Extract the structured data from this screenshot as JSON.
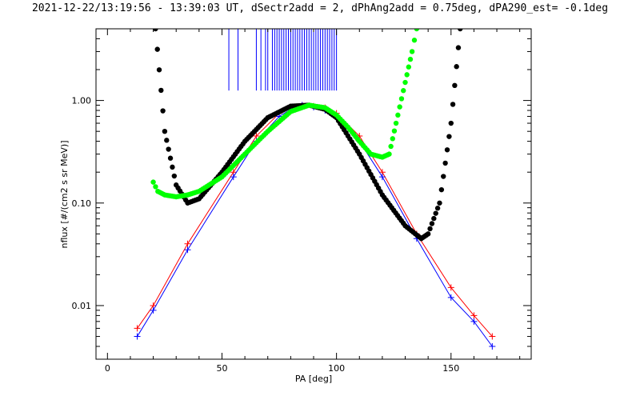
{
  "chart_data": {
    "type": "scatter",
    "title": "2021-12-22/13:19:56 - 13:39:03 UT, dSectr2add = 2, dPhAng2add = 0.75deg, dPA290_est=  -0.1deg",
    "xlabel": "PA [deg]",
    "ylabel": "nflux [#/(cm2 s sr MeV)]",
    "xlim": [
      -5,
      185
    ],
    "ylim": [
      0.003,
      5.0
    ],
    "yscale": "log",
    "x_ticks": [
      0,
      50,
      100,
      150
    ],
    "x_tick_labels": [
      "0",
      "50",
      "100",
      "150"
    ],
    "y_ticks": [
      0.01,
      0.1,
      1.0
    ],
    "y_tick_labels": [
      "0.01",
      "0.10",
      "1.00"
    ],
    "grid": false,
    "colors": {
      "red": "#ff0000",
      "blue": "#0000ff",
      "black": "#000000",
      "green": "#00ff00"
    },
    "series": [
      {
        "color": "red",
        "style": "line+plus",
        "x": [
          13,
          20,
          35,
          55,
          65,
          75,
          80,
          85,
          90,
          95,
          100,
          110,
          120,
          135,
          150,
          160,
          168
        ],
        "y": [
          0.006,
          0.01,
          0.04,
          0.2,
          0.45,
          0.75,
          0.85,
          0.9,
          0.88,
          0.85,
          0.75,
          0.45,
          0.2,
          0.05,
          0.015,
          0.008,
          0.005
        ]
      },
      {
        "color": "blue",
        "style": "line+plus",
        "x": [
          13,
          20,
          35,
          55,
          65,
          75,
          80,
          85,
          90,
          95,
          100,
          110,
          120,
          135,
          150,
          160,
          168
        ],
        "y": [
          0.005,
          0.009,
          0.035,
          0.18,
          0.4,
          0.7,
          0.82,
          0.9,
          0.86,
          0.8,
          0.7,
          0.4,
          0.18,
          0.045,
          0.012,
          0.007,
          0.004
        ]
      },
      {
        "color": "black",
        "style": "thick-dots",
        "x": [
          21,
          25,
          30,
          35,
          40,
          50,
          60,
          70,
          80,
          88,
          95,
          100,
          110,
          120,
          130,
          137,
          140,
          145,
          150,
          154
        ],
        "y": [
          5.0,
          0.5,
          0.15,
          0.1,
          0.11,
          0.2,
          0.4,
          0.68,
          0.88,
          0.9,
          0.82,
          0.68,
          0.3,
          0.12,
          0.06,
          0.045,
          0.05,
          0.1,
          0.6,
          5.0
        ]
      },
      {
        "color": "green",
        "style": "thick-dots",
        "x": [
          20,
          22,
          25,
          30,
          35,
          40,
          50,
          60,
          70,
          80,
          88,
          95,
          100,
          105,
          110,
          115,
          120,
          123,
          126,
          130,
          133,
          135
        ],
        "y": [
          0.16,
          0.13,
          0.12,
          0.115,
          0.12,
          0.13,
          0.18,
          0.3,
          0.5,
          0.78,
          0.9,
          0.85,
          0.72,
          0.55,
          0.4,
          0.3,
          0.28,
          0.3,
          0.6,
          1.5,
          3.0,
          5.0
        ]
      }
    ],
    "vertical_markers": {
      "color": "blue",
      "y_bottom": 1.25,
      "y_top": 5.0,
      "x": [
        53,
        57,
        65,
        67,
        69,
        70,
        72,
        73,
        74,
        75,
        76,
        77,
        78,
        79,
        80,
        81,
        82,
        83,
        84,
        85,
        86,
        87,
        88,
        89,
        90,
        91,
        92,
        93,
        94,
        95,
        96,
        97,
        98,
        99,
        100
      ]
    }
  }
}
